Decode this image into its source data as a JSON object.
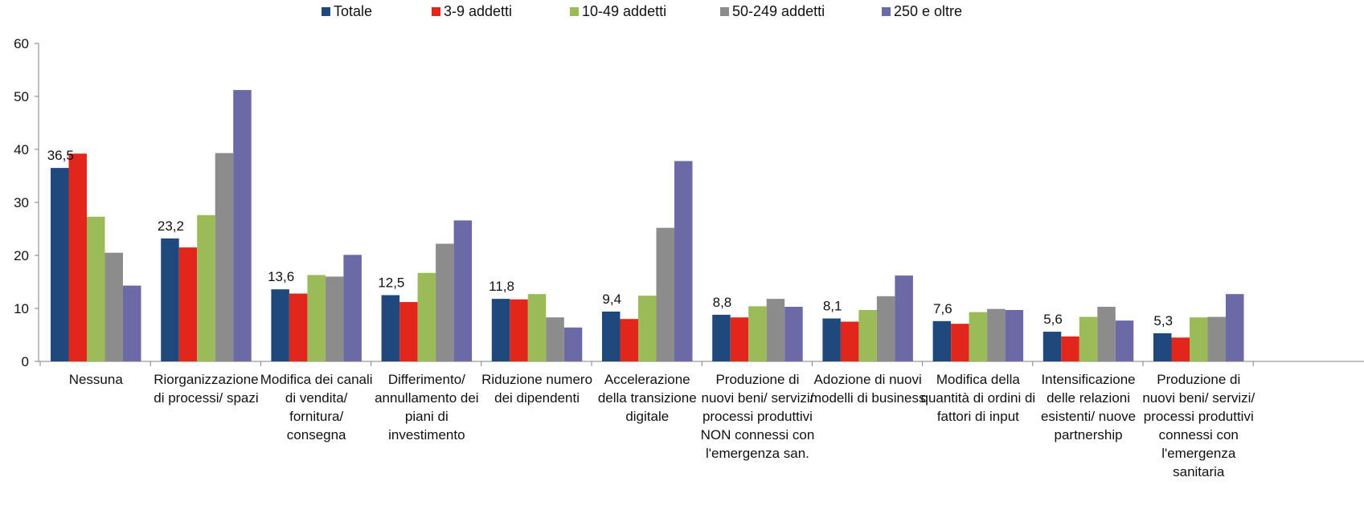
{
  "chart_data": {
    "type": "bar",
    "ylim": [
      0,
      60
    ],
    "yticks": [
      0,
      10,
      20,
      30,
      40,
      50,
      60
    ],
    "grid": false,
    "legend_position": "top",
    "categories": [
      [
        "Nessuna"
      ],
      [
        "Riorganizzazione",
        "di processi/ spazi"
      ],
      [
        "Modifica dei canali",
        "di vendita/",
        "fornitura/",
        "consegna"
      ],
      [
        "Differimento/",
        "annullamento dei",
        "piani di",
        "investimento"
      ],
      [
        "Riduzione numero",
        "dei dipendenti"
      ],
      [
        "Accelerazione",
        "della transizione",
        "digitale"
      ],
      [
        "Produzione di",
        "nuovi beni/ servizi/",
        "processi produttivi",
        "NON connessi con",
        "l'emergenza san."
      ],
      [
        "Adozione di nuovi",
        "modelli di business"
      ],
      [
        "Modifica della",
        "quantità di ordini di",
        "fattori di input"
      ],
      [
        "Intensificazione",
        "delle relazioni",
        "esistenti/ nuove",
        "partnership"
      ],
      [
        "Produzione di",
        "nuovi beni/ servizi/",
        "processi produttivi",
        "connessi con",
        "l'emergenza",
        "sanitaria"
      ]
    ],
    "series": [
      {
        "name": "Totale",
        "color": "#1f497d",
        "values": [
          36.5,
          23.2,
          13.6,
          12.5,
          11.8,
          9.4,
          8.8,
          8.1,
          7.6,
          5.6,
          5.3
        ]
      },
      {
        "name": "3-9 addetti",
        "color": "#e3261c",
        "values": [
          39.2,
          21.5,
          12.8,
          11.2,
          11.7,
          8.0,
          8.3,
          7.5,
          7.1,
          4.7,
          4.5
        ]
      },
      {
        "name": "10-49 addetti",
        "color": "#9bbb59",
        "values": [
          27.3,
          27.6,
          16.3,
          16.7,
          12.7,
          12.4,
          10.4,
          9.7,
          9.3,
          8.4,
          8.3
        ]
      },
      {
        "name": "50-249 addetti",
        "color": "#8c8c8c",
        "values": [
          20.5,
          39.3,
          16.0,
          22.2,
          8.3,
          25.2,
          11.8,
          12.3,
          9.9,
          10.3,
          8.4
        ]
      },
      {
        "name": "250 e oltre",
        "color": "#6b6aa6",
        "values": [
          14.3,
          51.2,
          20.1,
          26.6,
          6.4,
          37.8,
          10.3,
          16.2,
          9.7,
          7.7,
          12.7
        ]
      }
    ],
    "data_labels": [
      "36,5",
      "23,2",
      "13,6",
      "12,5",
      "11,8",
      "9,4",
      "8,8",
      "8,1",
      "7,6",
      "5,6",
      "5,3"
    ]
  }
}
